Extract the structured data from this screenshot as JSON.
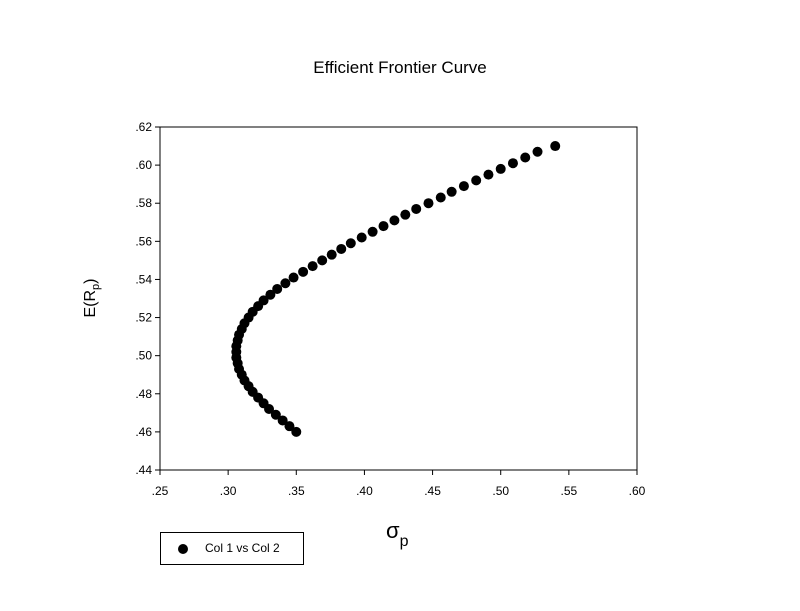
{
  "chart_data": {
    "type": "scatter",
    "title": "Efficient Frontier Curve",
    "xlabel": {
      "main": "σ",
      "sub": "p"
    },
    "ylabel": {
      "main": "E(R",
      "sub": "p",
      "tail": ")"
    },
    "xlim": [
      0.25,
      0.6
    ],
    "ylim": [
      0.44,
      0.62
    ],
    "x_ticks": [
      0.25,
      0.3,
      0.35,
      0.4,
      0.45,
      0.5,
      0.55,
      0.6
    ],
    "x_tick_labels": [
      ".25",
      ".30",
      ".35",
      ".40",
      ".45",
      ".50",
      ".55",
      ".60"
    ],
    "y_ticks": [
      0.44,
      0.46,
      0.48,
      0.5,
      0.52,
      0.54,
      0.56,
      0.58,
      0.6,
      0.62
    ],
    "y_tick_labels": [
      ".44",
      ".46",
      ".48",
      ".50",
      ".52",
      ".54",
      ".56",
      ".58",
      ".60",
      ".62"
    ],
    "grid": false,
    "legend_position": "bottom-left",
    "marker_color": "#000000",
    "series": [
      {
        "name": "Col 1 vs Col 2",
        "x": [
          0.35,
          0.345,
          0.34,
          0.335,
          0.33,
          0.326,
          0.322,
          0.318,
          0.315,
          0.312,
          0.31,
          0.308,
          0.307,
          0.306,
          0.306,
          0.306,
          0.307,
          0.308,
          0.31,
          0.312,
          0.315,
          0.318,
          0.322,
          0.326,
          0.331,
          0.336,
          0.342,
          0.348,
          0.355,
          0.362,
          0.369,
          0.376,
          0.383,
          0.39,
          0.398,
          0.406,
          0.414,
          0.422,
          0.43,
          0.438,
          0.447,
          0.456,
          0.464,
          0.473,
          0.482,
          0.491,
          0.5,
          0.509,
          0.518,
          0.527,
          0.54
        ],
        "y": [
          0.46,
          0.463,
          0.466,
          0.469,
          0.472,
          0.475,
          0.478,
          0.481,
          0.484,
          0.487,
          0.49,
          0.493,
          0.496,
          0.499,
          0.502,
          0.505,
          0.508,
          0.511,
          0.514,
          0.517,
          0.52,
          0.523,
          0.526,
          0.529,
          0.532,
          0.535,
          0.538,
          0.541,
          0.544,
          0.547,
          0.55,
          0.553,
          0.556,
          0.559,
          0.562,
          0.565,
          0.568,
          0.571,
          0.574,
          0.577,
          0.58,
          0.583,
          0.586,
          0.589,
          0.592,
          0.595,
          0.598,
          0.601,
          0.604,
          0.607,
          0.61
        ]
      }
    ]
  }
}
